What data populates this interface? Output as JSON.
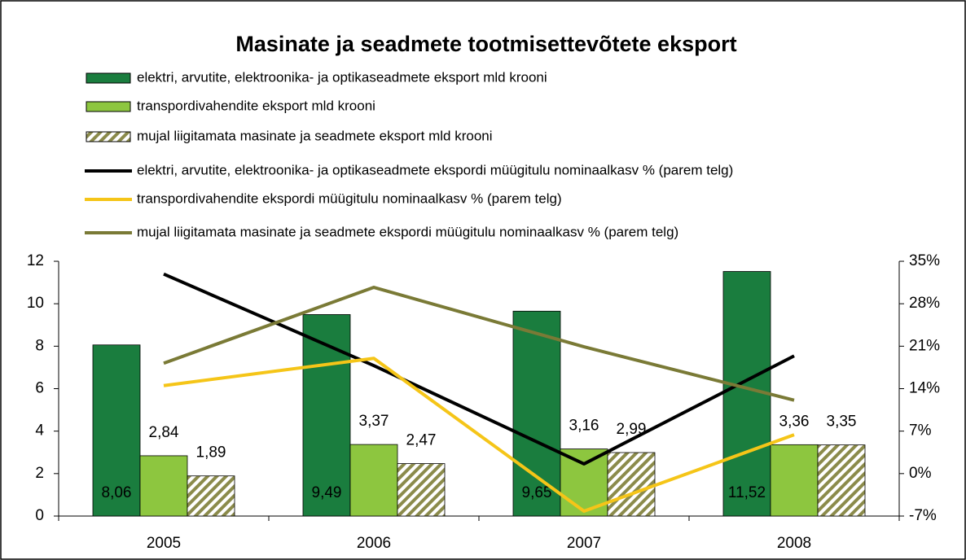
{
  "chart_data": {
    "type": "bar_line",
    "title": "Masinate ja seadmete tootmisettevõtete eksport",
    "categories": [
      "2005",
      "2006",
      "2007",
      "2008"
    ],
    "series": [
      {
        "name": "elektri, arvutite, elektroonika- ja optikaseadmete eksport mld krooni",
        "type": "bar",
        "color": "#1a7d3e",
        "values": [
          8.06,
          9.49,
          9.65,
          11.52
        ],
        "value_labels": [
          "8,06",
          "9,49",
          "9,65",
          "11,52"
        ],
        "label_position": "inside"
      },
      {
        "name": "transpordivahendite eksport mld krooni",
        "type": "bar",
        "color": "#8dc63f",
        "values": [
          2.84,
          3.37,
          3.16,
          3.36
        ],
        "value_labels": [
          "2,84",
          "3,37",
          "3,16",
          "3,36"
        ],
        "label_position": "above"
      },
      {
        "name": "mujal liigitamata masinate ja seadmete eksport mld krooni",
        "type": "bar",
        "color": "#8b8b4b",
        "pattern": "hatch",
        "values": [
          1.89,
          2.47,
          2.99,
          3.35
        ],
        "value_labels": [
          "1,89",
          "2,47",
          "2,99",
          "3,35"
        ],
        "label_position": "above"
      },
      {
        "name": "elektri, arvutite, elektroonika- ja optikaseadmete ekspordi müügitulu nominaalkasv % (parem telg)",
        "type": "line",
        "axis": "y2",
        "color": "#000000",
        "values": [
          32.9,
          17.8,
          1.6,
          19.4
        ]
      },
      {
        "name": "transpordivahendite ekspordi müügitulu nominaalkasv % (parem telg)",
        "type": "line",
        "axis": "y2",
        "color": "#f5c518",
        "values": [
          14.5,
          19.0,
          -6.2,
          6.4
        ]
      },
      {
        "name": "mujal liigitamata masinate ja seadmete ekspordi müügitulu nominaalkasv % (parem telg)",
        "type": "line",
        "axis": "y2",
        "color": "#7a7a36",
        "values": [
          18.2,
          30.7,
          20.9,
          12.1
        ]
      }
    ],
    "ylim": [
      0,
      12
    ],
    "yticks": [
      0,
      2,
      4,
      6,
      8,
      10,
      12
    ],
    "y2lim": [
      -7,
      35
    ],
    "y2ticks": [
      {
        "value": -7,
        "label": "-7%"
      },
      {
        "value": 0,
        "label": "0%"
      },
      {
        "value": 7,
        "label": "7%"
      },
      {
        "value": 14,
        "label": "14%"
      },
      {
        "value": 21,
        "label": "21%"
      },
      {
        "value": 28,
        "label": "28%"
      },
      {
        "value": 35,
        "label": "35%"
      }
    ],
    "legend": "top",
    "grid": false
  }
}
